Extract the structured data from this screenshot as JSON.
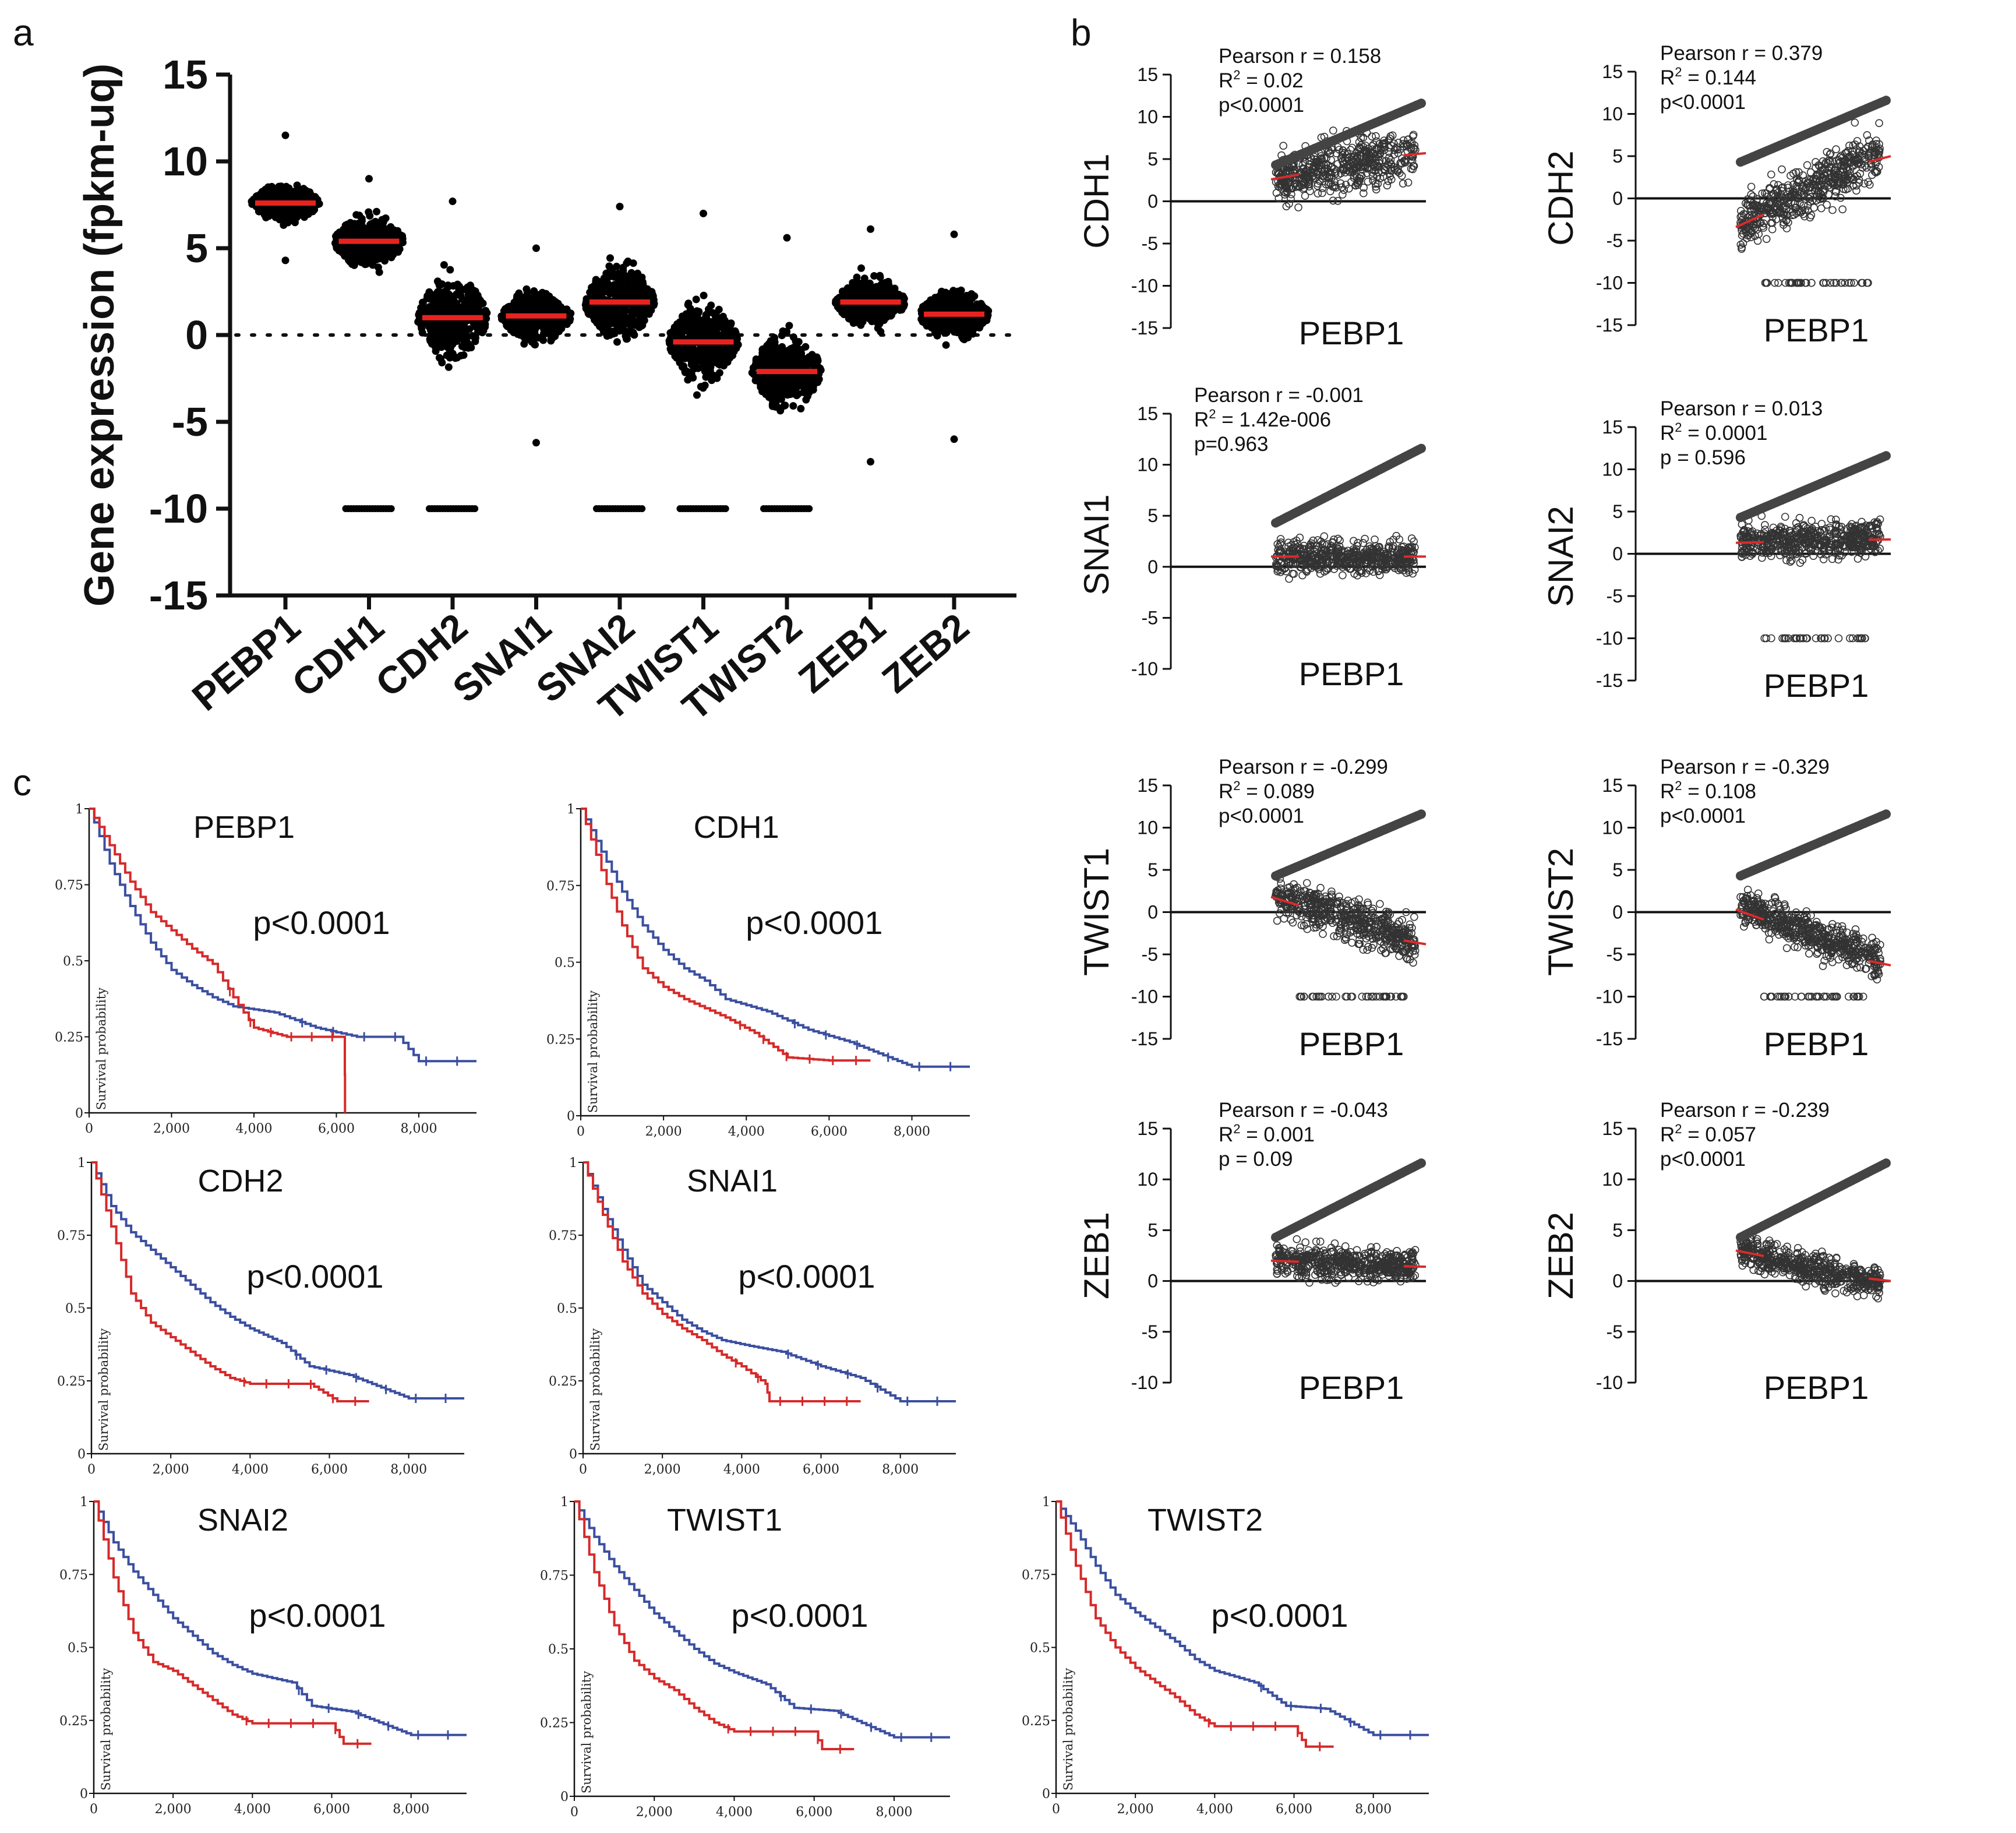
{
  "panel_labels": [
    "a",
    "b",
    "c"
  ],
  "chart_data": [
    {
      "type": "scatter",
      "subtype": "dot-plot",
      "panel": "a",
      "ylabel": "Gene expression (fpkm-uq)",
      "ylim": [
        -15,
        15
      ],
      "yticks": [
        15,
        10,
        5,
        0,
        -5,
        -10,
        -15
      ],
      "reference_line": 0,
      "categories": [
        "PEBP1",
        "CDH1",
        "CDH2",
        "SNAI1",
        "SNAI2",
        "TWIST1",
        "TWIST2",
        "ZEB1",
        "ZEB2"
      ],
      "medians": [
        7.6,
        5.4,
        1.0,
        1.1,
        1.9,
        -0.4,
        -2.1,
        1.9,
        1.2
      ],
      "max": [
        11.5,
        9.0,
        7.7,
        5.0,
        7.4,
        7.0,
        5.6,
        6.1,
        5.8
      ],
      "min": [
        4.3,
        -10,
        -10,
        -6.2,
        -10,
        -10,
        -10,
        -7.3,
        -6.0
      ],
      "has_floor_at_minus10": [
        false,
        true,
        true,
        false,
        true,
        true,
        true,
        false,
        false
      ],
      "spread": [
        1.0,
        1.4,
        2.2,
        1.4,
        2.0,
        2.2,
        2.0,
        1.3,
        1.3
      ]
    },
    {
      "type": "scatter",
      "panel": "b",
      "xlabel": "PEBP1",
      "plots": [
        {
          "gene": "CDH1",
          "pearson": "Pearson r = 0.158",
          "r2_label": "R",
          "r2_value": " = 0.02",
          "p": "p<0.0001",
          "ymin": -15,
          "yticks": [
            15,
            10,
            5,
            0,
            -5,
            -10,
            -15
          ],
          "fit": [
            2.6,
            5.7
          ],
          "center": 4.2,
          "spread": 3.0,
          "floor": false
        },
        {
          "gene": "CDH2",
          "pearson": "Pearson r = 0.379",
          "r2_label": "R",
          "r2_value": " = 0.144",
          "p": "p<0.0001",
          "ymin": -15,
          "yticks": [
            15,
            10,
            5,
            0,
            -5,
            -10,
            -15
          ],
          "fit": [
            -3.4,
            5.0
          ],
          "center": 1.5,
          "spread": 3.0,
          "floor": true
        },
        {
          "gene": "SNAI1",
          "pearson": "Pearson r = -0.001",
          "r2_label": "R",
          "r2_value": " = 1.42e-006",
          "p": "p=0.963",
          "ymin": -10,
          "yticks": [
            15,
            10,
            5,
            0,
            -5,
            -10
          ],
          "fit": [
            1.0,
            1.0
          ],
          "center": 1.0,
          "spread": 1.6,
          "floor": false
        },
        {
          "gene": "SNAI2",
          "pearson": "Pearson r = 0.013",
          "r2_label": "R",
          "r2_value": " = 0.0001",
          "p": "p = 0.596",
          "ymin": -15,
          "yticks": [
            15,
            10,
            5,
            0,
            -5,
            -10,
            -15
          ],
          "fit": [
            1.3,
            1.7
          ],
          "center": 1.8,
          "spread": 2.2,
          "floor": true
        },
        {
          "gene": "TWIST1",
          "pearson": "Pearson r = -0.299",
          "r2_label": "R",
          "r2_value": " = 0.089",
          "p": "p<0.0001",
          "ymin": -15,
          "yticks": [
            15,
            10,
            5,
            0,
            -5,
            -10,
            -15
          ],
          "fit": [
            1.8,
            -3.8
          ],
          "center": -0.5,
          "spread": 2.4,
          "floor": true
        },
        {
          "gene": "TWIST2",
          "pearson": "Pearson r = -0.329",
          "r2_label": "R",
          "r2_value": " = 0.108",
          "p": "p<0.0001",
          "ymin": -15,
          "yticks": [
            15,
            10,
            5,
            0,
            -5,
            -10,
            -15
          ],
          "fit": [
            0.3,
            -6.3
          ],
          "center": -2.0,
          "spread": 2.2,
          "floor": true
        },
        {
          "gene": "ZEB1",
          "pearson": "Pearson r = -0.043",
          "r2_label": "R",
          "r2_value": " = 0.001",
          "p": "p = 0.09",
          "ymin": -10,
          "yticks": [
            15,
            10,
            5,
            0,
            -5,
            -10
          ],
          "fit": [
            2.0,
            1.4
          ],
          "center": 1.8,
          "spread": 1.6,
          "floor": false
        },
        {
          "gene": "ZEB2",
          "pearson": "Pearson r = -0.239",
          "r2_label": "R",
          "r2_value": " = 0.057",
          "p": "p<0.0001",
          "ymin": -10,
          "yticks": [
            15,
            10,
            5,
            0,
            -5,
            -10
          ],
          "fit": [
            3.0,
            0.0
          ],
          "center": 1.2,
          "spread": 1.5,
          "floor": false
        }
      ]
    },
    {
      "type": "line",
      "subtype": "kaplan-meier",
      "panel": "c",
      "ylabel": "Survival probability",
      "xlim": [
        0,
        9400
      ],
      "xticks": [
        "0",
        "2,000",
        "4,000",
        "6,000",
        "8,000"
      ],
      "yticks": [
        "0",
        "0.25",
        "0.5",
        "0.75",
        "1"
      ],
      "plots": [
        {
          "gene": "PEBP1",
          "p": "p<0.0001",
          "blue": [
            [
              0,
              1
            ],
            [
              500,
              0.82
            ],
            [
              1000,
              0.68
            ],
            [
              1500,
              0.56
            ],
            [
              2000,
              0.47
            ],
            [
              2500,
              0.42
            ],
            [
              3000,
              0.38
            ],
            [
              3500,
              0.35
            ],
            [
              4500,
              0.33
            ],
            [
              5500,
              0.28
            ],
            [
              6500,
              0.25
            ],
            [
              7500,
              0.25
            ],
            [
              8000,
              0.17
            ],
            [
              9400,
              0.17
            ]
          ],
          "red": [
            [
              0,
              1
            ],
            [
              500,
              0.88
            ],
            [
              1000,
              0.76
            ],
            [
              1500,
              0.66
            ],
            [
              2000,
              0.6
            ],
            [
              2500,
              0.54
            ],
            [
              3000,
              0.49
            ],
            [
              3500,
              0.38
            ],
            [
              4000,
              0.28
            ],
            [
              4800,
              0.25
            ],
            [
              6200,
              0.25
            ],
            [
              6210,
              0.0
            ]
          ]
        },
        {
          "gene": "CDH1",
          "p": "p<0.0001",
          "blue": [
            [
              0,
              1
            ],
            [
              500,
              0.86
            ],
            [
              1000,
              0.73
            ],
            [
              1500,
              0.62
            ],
            [
              2000,
              0.54
            ],
            [
              2500,
              0.48
            ],
            [
              3000,
              0.44
            ],
            [
              3500,
              0.38
            ],
            [
              4000,
              0.36
            ],
            [
              4500,
              0.34
            ],
            [
              5500,
              0.28
            ],
            [
              6500,
              0.24
            ],
            [
              8000,
              0.16
            ],
            [
              9400,
              0.16
            ]
          ],
          "red": [
            [
              0,
              1
            ],
            [
              500,
              0.8
            ],
            [
              1000,
              0.62
            ],
            [
              1500,
              0.48
            ],
            [
              2000,
              0.42
            ],
            [
              2500,
              0.38
            ],
            [
              3000,
              0.35
            ],
            [
              3500,
              0.32
            ],
            [
              4200,
              0.27
            ],
            [
              5000,
              0.19
            ],
            [
              6000,
              0.18
            ],
            [
              7000,
              0.18
            ]
          ]
        },
        {
          "gene": "CDH2",
          "p": "p<0.0001",
          "blue": [
            [
              0,
              1
            ],
            [
              500,
              0.85
            ],
            [
              1000,
              0.76
            ],
            [
              1500,
              0.7
            ],
            [
              2000,
              0.64
            ],
            [
              2500,
              0.58
            ],
            [
              3000,
              0.52
            ],
            [
              3500,
              0.47
            ],
            [
              4000,
              0.43
            ],
            [
              4800,
              0.38
            ],
            [
              5500,
              0.3
            ],
            [
              6500,
              0.27
            ],
            [
              8000,
              0.19
            ],
            [
              9400,
              0.19
            ]
          ],
          "red": [
            [
              0,
              1
            ],
            [
              500,
              0.78
            ],
            [
              1000,
              0.55
            ],
            [
              1500,
              0.45
            ],
            [
              2000,
              0.4
            ],
            [
              2500,
              0.35
            ],
            [
              3000,
              0.3
            ],
            [
              3500,
              0.26
            ],
            [
              4000,
              0.24
            ],
            [
              5500,
              0.24
            ],
            [
              6200,
              0.18
            ],
            [
              7000,
              0.18
            ]
          ]
        },
        {
          "gene": "SNAI1",
          "p": "p<0.0001",
          "blue": [
            [
              0,
              1
            ],
            [
              500,
              0.84
            ],
            [
              1000,
              0.7
            ],
            [
              1500,
              0.58
            ],
            [
              2000,
              0.52
            ],
            [
              2500,
              0.46
            ],
            [
              3000,
              0.42
            ],
            [
              3500,
              0.39
            ],
            [
              4200,
              0.37
            ],
            [
              5000,
              0.35
            ],
            [
              6000,
              0.3
            ],
            [
              7000,
              0.26
            ],
            [
              8000,
              0.18
            ],
            [
              9400,
              0.18
            ]
          ],
          "red": [
            [
              0,
              1
            ],
            [
              500,
              0.82
            ],
            [
              1000,
              0.66
            ],
            [
              1500,
              0.55
            ],
            [
              2000,
              0.48
            ],
            [
              2500,
              0.43
            ],
            [
              3000,
              0.39
            ],
            [
              3500,
              0.34
            ],
            [
              4000,
              0.3
            ],
            [
              4600,
              0.24
            ],
            [
              4700,
              0.18
            ],
            [
              7000,
              0.18
            ]
          ]
        },
        {
          "gene": "SNAI2",
          "p": "p<0.0001",
          "blue": [
            [
              0,
              1
            ],
            [
              500,
              0.86
            ],
            [
              1000,
              0.76
            ],
            [
              1500,
              0.68
            ],
            [
              2000,
              0.6
            ],
            [
              2500,
              0.54
            ],
            [
              3000,
              0.48
            ],
            [
              3500,
              0.44
            ],
            [
              4000,
              0.41
            ],
            [
              5000,
              0.38
            ],
            [
              5500,
              0.3
            ],
            [
              6500,
              0.28
            ],
            [
              8000,
              0.2
            ],
            [
              9400,
              0.2
            ]
          ],
          "red": [
            [
              0,
              1
            ],
            [
              500,
              0.74
            ],
            [
              1000,
              0.55
            ],
            [
              1500,
              0.45
            ],
            [
              2000,
              0.42
            ],
            [
              2500,
              0.37
            ],
            [
              3000,
              0.32
            ],
            [
              3500,
              0.27
            ],
            [
              4000,
              0.24
            ],
            [
              6000,
              0.24
            ],
            [
              6300,
              0.17
            ],
            [
              7000,
              0.17
            ]
          ]
        },
        {
          "gene": "TWIST1",
          "p": "p<0.0001",
          "blue": [
            [
              0,
              1
            ],
            [
              500,
              0.88
            ],
            [
              1000,
              0.78
            ],
            [
              1500,
              0.7
            ],
            [
              2000,
              0.62
            ],
            [
              2500,
              0.56
            ],
            [
              3000,
              0.5
            ],
            [
              3500,
              0.45
            ],
            [
              4000,
              0.42
            ],
            [
              4800,
              0.38
            ],
            [
              5500,
              0.3
            ],
            [
              6500,
              0.29
            ],
            [
              8000,
              0.2
            ],
            [
              9400,
              0.2
            ]
          ],
          "red": [
            [
              0,
              1
            ],
            [
              500,
              0.76
            ],
            [
              1000,
              0.58
            ],
            [
              1500,
              0.46
            ],
            [
              2000,
              0.4
            ],
            [
              2500,
              0.36
            ],
            [
              3000,
              0.3
            ],
            [
              3500,
              0.25
            ],
            [
              4000,
              0.22
            ],
            [
              6000,
              0.22
            ],
            [
              6200,
              0.16
            ],
            [
              7000,
              0.16
            ]
          ]
        },
        {
          "gene": "TWIST2",
          "p": "p<0.0001",
          "blue": [
            [
              0,
              1
            ],
            [
              500,
              0.9
            ],
            [
              1000,
              0.78
            ],
            [
              1500,
              0.68
            ],
            [
              2000,
              0.62
            ],
            [
              2500,
              0.57
            ],
            [
              3000,
              0.52
            ],
            [
              3500,
              0.46
            ],
            [
              4000,
              0.42
            ],
            [
              5000,
              0.38
            ],
            [
              5800,
              0.3
            ],
            [
              6800,
              0.29
            ],
            [
              8000,
              0.2
            ],
            [
              9400,
              0.2
            ]
          ],
          "red": [
            [
              0,
              1
            ],
            [
              500,
              0.78
            ],
            [
              1000,
              0.6
            ],
            [
              1500,
              0.5
            ],
            [
              2000,
              0.43
            ],
            [
              2500,
              0.38
            ],
            [
              3000,
              0.33
            ],
            [
              3500,
              0.27
            ],
            [
              4000,
              0.23
            ],
            [
              6000,
              0.23
            ],
            [
              6300,
              0.16
            ],
            [
              7000,
              0.16
            ]
          ]
        }
      ]
    }
  ],
  "colors": {
    "blue": "#3b4fa0",
    "red": "#d62a2a",
    "median": "#e8231f",
    "fit": "#d92b2b",
    "axis": "#111111"
  }
}
